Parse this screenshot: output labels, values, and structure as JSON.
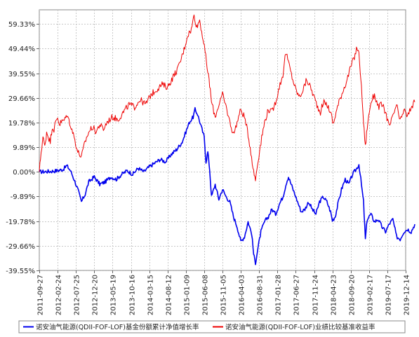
{
  "chart_data": {
    "type": "line",
    "ylim": [
      -39.55,
      65.0
    ],
    "y_ticks": [
      "59.33%",
      "49.44%",
      "39.55%",
      "29.66%",
      "19.78%",
      "9.89%",
      "0.00%",
      "-9.89%",
      "-19.78%",
      "-29.66%",
      "-39.55%"
    ],
    "y_tick_values": [
      59.33,
      49.44,
      39.55,
      29.66,
      19.78,
      9.89,
      0.0,
      -9.89,
      -19.78,
      -29.66,
      -39.55
    ],
    "x_ticks": [
      "2011-09-27",
      "2012-02-24",
      "2012-07-25",
      "2012-12-20",
      "2013-05-19",
      "2013-10-16",
      "2014-03-15",
      "2014-08-12",
      "2015-01-09",
      "2015-06-08",
      "2015-11-05",
      "2016-04-03",
      "2016-08-31",
      "2017-01-28",
      "2017-06-27",
      "2017-11-24",
      "2018-04-23",
      "2018-09-20",
      "2019-02-17",
      "2019-07-17",
      "2019-12-14"
    ],
    "grid": true,
    "legend_position": "bottom",
    "series": [
      {
        "name": "诺安油气能源(QDII-FOF-LOF)基金份额累计净值增长率",
        "color": "#0000ee",
        "points": [
          [
            0,
            0.0
          ],
          [
            6,
            0.2
          ],
          [
            10,
            0.5
          ],
          [
            13,
            1.0
          ],
          [
            15,
            2.5
          ],
          [
            17,
            0.5
          ],
          [
            19,
            -3.0
          ],
          [
            21,
            -7.0
          ],
          [
            23,
            -12.0
          ],
          [
            25,
            -9.0
          ],
          [
            27,
            -4.0
          ],
          [
            30,
            -2.0
          ],
          [
            33,
            -5.0
          ],
          [
            36,
            -4.0
          ],
          [
            39,
            -2.0
          ],
          [
            42,
            -3.0
          ],
          [
            45,
            -1.0
          ],
          [
            48,
            0.5
          ],
          [
            51,
            -1.0
          ],
          [
            54,
            1.5
          ],
          [
            57,
            0.0
          ],
          [
            60,
            2.0
          ],
          [
            63,
            3.5
          ],
          [
            66,
            5.0
          ],
          [
            69,
            4.0
          ],
          [
            72,
            7.0
          ],
          [
            75,
            9.0
          ],
          [
            78,
            12.0
          ],
          [
            80,
            16.0
          ],
          [
            82,
            20.0
          ],
          [
            84,
            22.0
          ],
          [
            85,
            25.0
          ],
          [
            86.5,
            23.0
          ],
          [
            88,
            19.0
          ],
          [
            90,
            14.0
          ],
          [
            91,
            4.0
          ],
          [
            92,
            8.0
          ],
          [
            93,
            1.0
          ],
          [
            94,
            -10.0
          ],
          [
            96,
            -5.0
          ],
          [
            98,
            -11.0
          ],
          [
            100,
            -7.0
          ],
          [
            102,
            -10.0
          ],
          [
            104,
            -12.0
          ],
          [
            106,
            -18.0
          ],
          [
            108,
            -22.0
          ],
          [
            110,
            -28.0
          ],
          [
            112,
            -26.0
          ],
          [
            114,
            -20.0
          ],
          [
            116,
            -25.0
          ],
          [
            117,
            -33.0
          ],
          [
            118,
            -36.5
          ],
          [
            119.5,
            -30.0
          ],
          [
            121,
            -24.0
          ],
          [
            123,
            -20.0
          ],
          [
            125,
            -18.0
          ],
          [
            127,
            -15.0
          ],
          [
            129,
            -17.0
          ],
          [
            131,
            -13.0
          ],
          [
            133,
            -10.0
          ],
          [
            135,
            -4.0
          ],
          [
            136,
            -2.0
          ],
          [
            137.5,
            -5.0
          ],
          [
            139,
            -8.0
          ],
          [
            141,
            -12.0
          ],
          [
            143,
            -16.0
          ],
          [
            145,
            -15.0
          ],
          [
            147,
            -12.0
          ],
          [
            149,
            -15.0
          ],
          [
            151,
            -17.0
          ],
          [
            153,
            -12.0
          ],
          [
            155,
            -10.0
          ],
          [
            157,
            -12.0
          ],
          [
            159,
            -16.0
          ],
          [
            160,
            -19.5
          ],
          [
            161.5,
            -18.0
          ],
          [
            163,
            -13.0
          ],
          [
            165,
            -7.0
          ],
          [
            167,
            -3.0
          ],
          [
            169,
            -5.0
          ],
          [
            171,
            -1.0
          ],
          [
            173,
            1.0
          ],
          [
            174.5,
            3.0
          ],
          [
            175.5,
            -3.0
          ],
          [
            177,
            -12.0
          ],
          [
            178,
            -27.0
          ],
          [
            179,
            -19.0
          ],
          [
            181,
            -17.0
          ],
          [
            183,
            -20.0
          ],
          [
            185,
            -19.0
          ],
          [
            187,
            -22.0
          ],
          [
            189,
            -24.0
          ],
          [
            191,
            -21.0
          ],
          [
            193,
            -19.0
          ],
          [
            195,
            -26.0
          ],
          [
            197,
            -27.0
          ],
          [
            199,
            -24.0
          ],
          [
            201,
            -23.0
          ],
          [
            203,
            -24.0
          ],
          [
            205,
            -21.0
          ]
        ]
      },
      {
        "name": "诺安油气能源(QDII-FOF-LOF)业绩比较基准收益率",
        "color": "#ee0000",
        "points": [
          [
            0,
            0.0
          ],
          [
            1,
            8.0
          ],
          [
            2,
            14.0
          ],
          [
            3,
            10.0
          ],
          [
            4,
            16.0
          ],
          [
            5,
            14.0
          ],
          [
            6,
            12.0
          ],
          [
            7,
            18.0
          ],
          [
            8,
            17.0
          ],
          [
            9,
            20.0
          ],
          [
            10,
            22.0
          ],
          [
            11,
            19.0
          ],
          [
            12,
            20.0
          ],
          [
            14,
            21.0
          ],
          [
            15,
            23.0
          ],
          [
            17,
            19.0
          ],
          [
            19,
            14.0
          ],
          [
            21,
            8.0
          ],
          [
            23,
            6.0
          ],
          [
            25,
            12.0
          ],
          [
            27,
            16.0
          ],
          [
            29,
            18.0
          ],
          [
            31,
            16.0
          ],
          [
            33,
            19.0
          ],
          [
            35,
            17.0
          ],
          [
            37,
            20.0
          ],
          [
            40,
            22.0
          ],
          [
            43,
            21.0
          ],
          [
            46,
            24.0
          ],
          [
            49,
            27.0
          ],
          [
            52,
            26.0
          ],
          [
            55,
            29.0
          ],
          [
            58,
            27.0
          ],
          [
            61,
            31.0
          ],
          [
            64,
            33.0
          ],
          [
            67,
            35.0
          ],
          [
            70,
            34.0
          ],
          [
            73,
            38.0
          ],
          [
            76,
            42.0
          ],
          [
            79,
            49.0
          ],
          [
            81,
            55.0
          ],
          [
            83,
            57.0
          ],
          [
            84.5,
            63.0
          ],
          [
            86,
            58.0
          ],
          [
            87.5,
            61.0
          ],
          [
            89,
            55.0
          ],
          [
            90.5,
            48.0
          ],
          [
            92,
            40.0
          ],
          [
            93,
            35.0
          ],
          [
            94,
            28.0
          ],
          [
            96,
            22.0
          ],
          [
            98,
            27.0
          ],
          [
            100,
            31.0
          ],
          [
            102,
            26.0
          ],
          [
            104,
            20.0
          ],
          [
            106,
            15.0
          ],
          [
            108,
            20.0
          ],
          [
            110,
            25.0
          ],
          [
            112,
            22.0
          ],
          [
            114,
            15.0
          ],
          [
            115.5,
            8.0
          ],
          [
            117,
            0.0
          ],
          [
            118,
            -3.0
          ],
          [
            119.5,
            5.0
          ],
          [
            121,
            12.0
          ],
          [
            123,
            20.0
          ],
          [
            125,
            25.0
          ],
          [
            127,
            24.0
          ],
          [
            129,
            28.0
          ],
          [
            131,
            34.0
          ],
          [
            133,
            39.0
          ],
          [
            134.5,
            48.0
          ],
          [
            136,
            44.0
          ],
          [
            138,
            38.0
          ],
          [
            140,
            33.0
          ],
          [
            142,
            30.0
          ],
          [
            144,
            33.0
          ],
          [
            146,
            37.0
          ],
          [
            148,
            34.0
          ],
          [
            150,
            30.0
          ],
          [
            152,
            26.0
          ],
          [
            153.5,
            24.0
          ],
          [
            155,
            28.0
          ],
          [
            157,
            27.0
          ],
          [
            159,
            24.0
          ],
          [
            160.5,
            19.0
          ],
          [
            162,
            24.0
          ],
          [
            164,
            29.0
          ],
          [
            166,
            33.0
          ],
          [
            168,
            37.0
          ],
          [
            170,
            42.0
          ],
          [
            172,
            46.0
          ],
          [
            173.5,
            50.0
          ],
          [
            174.5,
            47.0
          ],
          [
            175.5,
            38.0
          ],
          [
            177,
            20.0
          ],
          [
            178,
            10.0
          ],
          [
            179,
            18.0
          ],
          [
            181,
            28.0
          ],
          [
            183,
            31.0
          ],
          [
            185,
            26.0
          ],
          [
            187,
            27.0
          ],
          [
            189,
            24.0
          ],
          [
            191,
            18.0
          ],
          [
            193,
            22.0
          ],
          [
            195,
            27.0
          ],
          [
            197,
            20.0
          ],
          [
            199,
            25.0
          ],
          [
            201,
            22.0
          ],
          [
            203,
            26.0
          ],
          [
            205,
            28.0
          ]
        ]
      }
    ]
  }
}
